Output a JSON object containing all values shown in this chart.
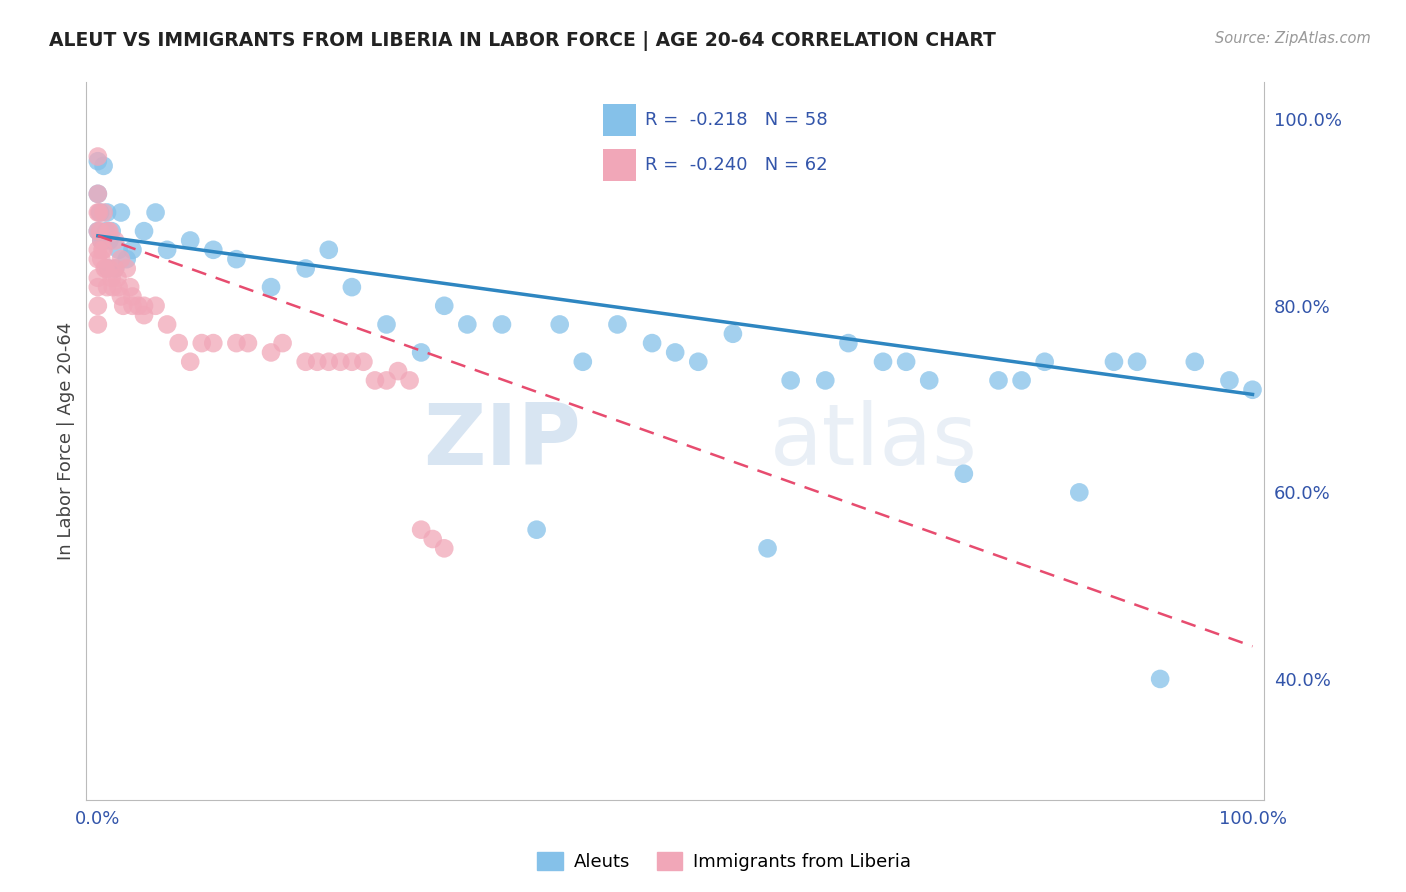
{
  "title": "ALEUT VS IMMIGRANTS FROM LIBERIA IN LABOR FORCE | AGE 20-64 CORRELATION CHART",
  "source_text": "Source: ZipAtlas.com",
  "ylabel": "In Labor Force | Age 20-64",
  "R1": "-0.218",
  "N1": "58",
  "R2": "-0.240",
  "N2": "62",
  "color1": "#85c1e9",
  "color2": "#f1a7b8",
  "trendline1_color": "#2e86c1",
  "trendline2_color": "#e74c6f",
  "watermark_zip": "ZIP",
  "watermark_atlas": "atlas",
  "legend_label1": "Aleuts",
  "legend_label2": "Immigrants from Liberia",
  "aleuts_x": [
    0.0,
    0.0,
    0.0,
    0.002,
    0.003,
    0.005,
    0.005,
    0.007,
    0.008,
    0.009,
    0.01,
    0.012,
    0.015,
    0.018,
    0.02,
    0.025,
    0.03,
    0.04,
    0.05,
    0.06,
    0.08,
    0.1,
    0.12,
    0.15,
    0.18,
    0.2,
    0.22,
    0.25,
    0.28,
    0.3,
    0.32,
    0.35,
    0.38,
    0.4,
    0.42,
    0.45,
    0.48,
    0.5,
    0.52,
    0.55,
    0.58,
    0.6,
    0.63,
    0.65,
    0.68,
    0.7,
    0.72,
    0.75,
    0.78,
    0.8,
    0.82,
    0.85,
    0.88,
    0.9,
    0.92,
    0.95,
    0.98,
    1.0
  ],
  "aleuts_y": [
    0.955,
    0.92,
    0.88,
    0.9,
    0.87,
    0.95,
    0.87,
    0.88,
    0.9,
    0.84,
    0.87,
    0.88,
    0.84,
    0.86,
    0.9,
    0.85,
    0.86,
    0.88,
    0.9,
    0.86,
    0.87,
    0.86,
    0.85,
    0.82,
    0.84,
    0.86,
    0.82,
    0.78,
    0.75,
    0.8,
    0.78,
    0.78,
    0.56,
    0.78,
    0.74,
    0.78,
    0.76,
    0.75,
    0.74,
    0.77,
    0.54,
    0.72,
    0.72,
    0.76,
    0.74,
    0.74,
    0.72,
    0.62,
    0.72,
    0.72,
    0.74,
    0.6,
    0.74,
    0.74,
    0.4,
    0.74,
    0.72,
    0.71
  ],
  "liberia_x": [
    0.0,
    0.0,
    0.0,
    0.0,
    0.0,
    0.0,
    0.0,
    0.0,
    0.0,
    0.0,
    0.001,
    0.002,
    0.003,
    0.003,
    0.004,
    0.005,
    0.005,
    0.006,
    0.007,
    0.008,
    0.009,
    0.01,
    0.01,
    0.012,
    0.013,
    0.015,
    0.015,
    0.017,
    0.018,
    0.02,
    0.02,
    0.022,
    0.025,
    0.028,
    0.03,
    0.03,
    0.035,
    0.04,
    0.04,
    0.05,
    0.06,
    0.07,
    0.08,
    0.09,
    0.1,
    0.12,
    0.13,
    0.15,
    0.16,
    0.18,
    0.19,
    0.2,
    0.21,
    0.22,
    0.23,
    0.24,
    0.25,
    0.26,
    0.27,
    0.28,
    0.29,
    0.3
  ],
  "liberia_y": [
    0.96,
    0.92,
    0.9,
    0.88,
    0.86,
    0.85,
    0.83,
    0.82,
    0.8,
    0.78,
    0.9,
    0.88,
    0.87,
    0.85,
    0.86,
    0.9,
    0.86,
    0.84,
    0.84,
    0.82,
    0.88,
    0.88,
    0.84,
    0.83,
    0.82,
    0.87,
    0.84,
    0.83,
    0.82,
    0.85,
    0.81,
    0.8,
    0.84,
    0.82,
    0.81,
    0.8,
    0.8,
    0.8,
    0.79,
    0.8,
    0.78,
    0.76,
    0.74,
    0.76,
    0.76,
    0.76,
    0.76,
    0.75,
    0.76,
    0.74,
    0.74,
    0.74,
    0.74,
    0.74,
    0.74,
    0.72,
    0.72,
    0.73,
    0.72,
    0.56,
    0.55,
    0.54
  ],
  "trendline1_x": [
    0.0,
    1.0
  ],
  "trendline1_y_start": 0.875,
  "trendline1_y_end": 0.705,
  "trendline2_x": [
    0.0,
    1.0
  ],
  "trendline2_y_start": 0.875,
  "trendline2_y_end": 0.435,
  "xlim": [
    -0.01,
    1.01
  ],
  "ylim": [
    0.27,
    1.04
  ],
  "x_ticks": [
    0.0,
    0.2,
    0.4,
    0.6,
    0.8,
    1.0
  ],
  "x_tick_labels": [
    "0.0%",
    "",
    "",
    "",
    "",
    "100.0%"
  ],
  "y_ticks": [
    0.4,
    0.6,
    0.8,
    1.0
  ],
  "y_tick_labels": [
    "40.0%",
    "60.0%",
    "80.0%",
    "100.0%"
  ]
}
